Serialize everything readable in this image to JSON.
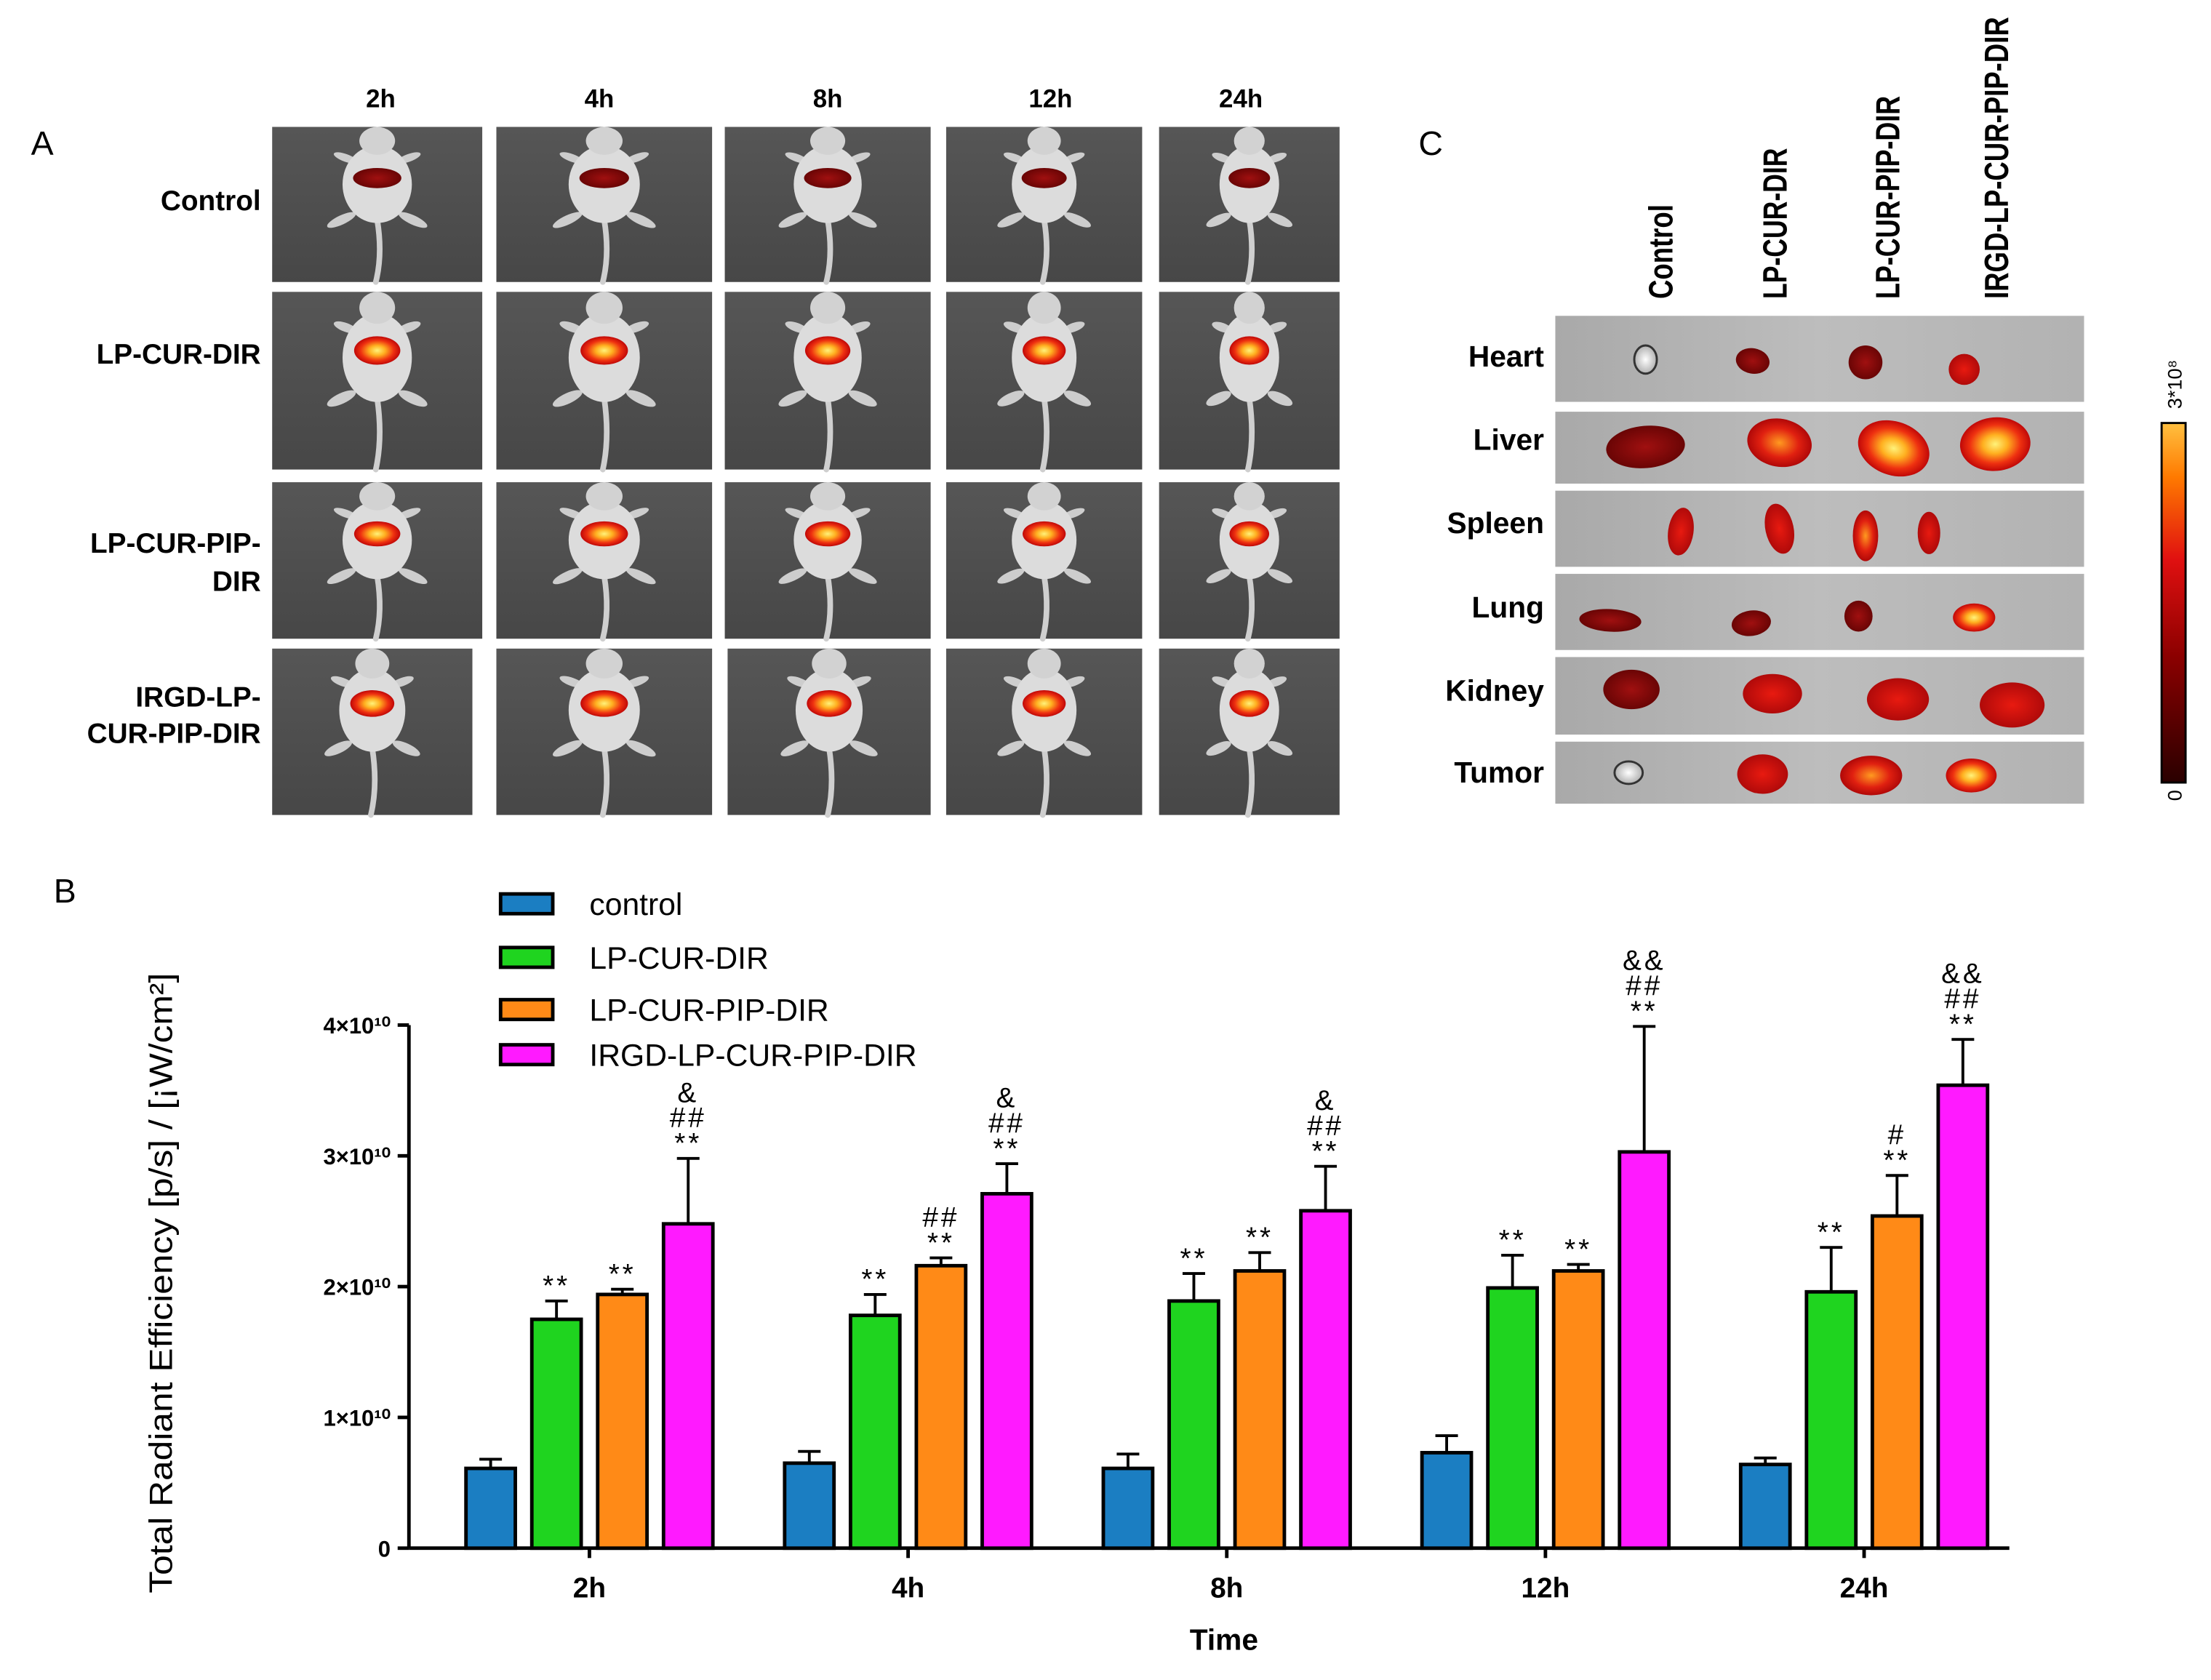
{
  "figure": {
    "panel_a": {
      "label": "A",
      "time_points": [
        "2h",
        "4h",
        "8h",
        "12h",
        "24h"
      ],
      "groups": [
        {
          "lines": [
            "Control"
          ]
        },
        {
          "lines": [
            "LP-CUR-DIR"
          ]
        },
        {
          "lines": [
            "LP-CUR-PIP-",
            "DIR"
          ]
        },
        {
          "lines": [
            "IRGD-LP-",
            "CUR-PIP-DIR"
          ]
        }
      ]
    },
    "panel_b": {
      "label": "B"
    },
    "panel_c": {
      "label": "C",
      "groups": [
        "Control",
        "LP-CUR-DIR",
        "LP-CUR-PIP-DIR",
        "IRGD-LP-CUR-PIP-DIR"
      ],
      "organs": [
        "Heart",
        "Liver",
        "Spleen",
        "Lung",
        "Kidney",
        "Tumor"
      ],
      "colorbar": {
        "max_label": "3*10⁸",
        "min_label": "0"
      }
    }
  },
  "chart_data": {
    "type": "bar",
    "categories": [
      "2h",
      "4h",
      "8h",
      "12h",
      "24h"
    ],
    "xlabel": "Time",
    "ylabel": "Total Radiant Efficiency [p/s] / [¡W/cm²]",
    "ylim": [
      0,
      40000000000
    ],
    "yticks": [
      0,
      10000000000,
      20000000000,
      30000000000,
      40000000000
    ],
    "ytick_labels": [
      "0",
      "1×10¹⁰",
      "2×10¹⁰",
      "3×10¹⁰",
      "4×10¹⁰"
    ],
    "grid": false,
    "series": [
      {
        "name": "control",
        "color": "#1b7ec2",
        "values": [
          6100000000.0,
          6500000000.0,
          6100000000.0,
          7300000000.0,
          6400000000.0
        ],
        "errors": [
          700000000.0,
          900000000.0,
          1100000000.0,
          1300000000.0,
          500000000.0
        ]
      },
      {
        "name": "LP-CUR-DIR",
        "color": "#1fd41f",
        "values": [
          17500000000.0,
          17800000000.0,
          18900000000.0,
          19900000000.0,
          19600000000.0
        ],
        "errors": [
          1400000000.0,
          1600000000.0,
          2100000000.0,
          2500000000.0,
          3400000000.0
        ]
      },
      {
        "name": "LP-CUR-PIP-DIR",
        "color": "#ff8a17",
        "values": [
          19400000000.0,
          21600000000.0,
          21200000000.0,
          21200000000.0,
          25400000000.0
        ],
        "errors": [
          400000000.0,
          600000000.0,
          1400000000.0,
          500000000.0,
          3100000000.0
        ]
      },
      {
        "name": "IRGD-LP-CUR-PIP-DIR",
        "color": "#ff1aff",
        "values": [
          24800000000.0,
          27100000000.0,
          25800000000.0,
          30300000000.0,
          35400000000.0
        ],
        "errors": [
          5000000000.0,
          2300000000.0,
          3400000000.0,
          9600000000.0,
          3500000000.0
        ]
      }
    ],
    "annotations": [
      [
        [],
        [],
        [],
        [],
        []
      ],
      [
        [
          "**"
        ],
        [
          "**"
        ],
        [
          "**"
        ],
        [
          "**"
        ],
        [
          "**"
        ]
      ],
      [
        [
          "**"
        ],
        [
          "##",
          "**"
        ],
        [
          "**"
        ],
        [
          "**"
        ],
        [
          "#",
          "**"
        ]
      ],
      [
        [
          "&",
          "##",
          "**"
        ],
        [
          "&",
          "##",
          "**"
        ],
        [
          "&",
          "##",
          "**"
        ],
        [
          "&&",
          "##",
          "**"
        ],
        [
          "&&",
          "##",
          "**"
        ]
      ]
    ]
  }
}
